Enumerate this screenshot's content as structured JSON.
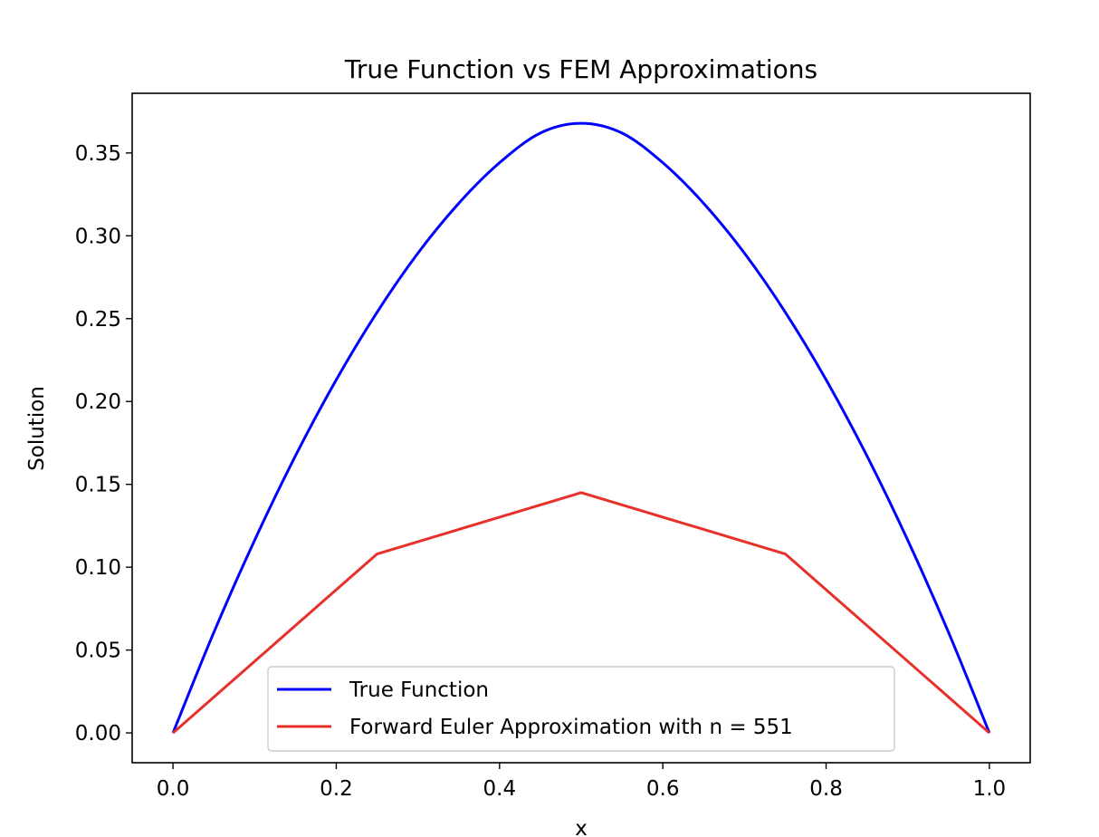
{
  "chart_data": {
    "type": "line",
    "title": "True Function vs FEM Approximations",
    "xlabel": "x",
    "ylabel": "Solution",
    "xlim": [
      -0.05,
      1.05
    ],
    "ylim": [
      -0.018,
      0.386
    ],
    "xticks": [
      "0.0",
      "0.2",
      "0.4",
      "0.6",
      "0.8",
      "1.0"
    ],
    "xtick_values": [
      0.0,
      0.2,
      0.4,
      0.6,
      0.8,
      1.0
    ],
    "yticks": [
      "0.00",
      "0.05",
      "0.10",
      "0.15",
      "0.20",
      "0.25",
      "0.30",
      "0.35"
    ],
    "ytick_values": [
      0.0,
      0.05,
      0.1,
      0.15,
      0.2,
      0.25,
      0.3,
      0.35
    ],
    "grid": false,
    "legend_position": "lower center",
    "series": [
      {
        "name": "True Function",
        "color": "#0000ff",
        "x": [
          0.0,
          0.05,
          0.1,
          0.15,
          0.2,
          0.25,
          0.3,
          0.35,
          0.4,
          0.45,
          0.5,
          0.55,
          0.6,
          0.65,
          0.7,
          0.75,
          0.8,
          0.85,
          0.9,
          0.95,
          1.0
        ],
        "y": [
          0.0,
          0.0606,
          0.1163,
          0.1672,
          0.2131,
          0.2539,
          0.2895,
          0.3196,
          0.3441,
          0.362,
          0.3679,
          0.362,
          0.3441,
          0.3196,
          0.2895,
          0.2539,
          0.2131,
          0.1672,
          0.1163,
          0.0606,
          0.0
        ]
      },
      {
        "name": "Forward Euler Approximation with n = 551",
        "color": "#e8302a",
        "x": [
          0.0,
          0.25,
          0.5,
          0.75,
          1.0
        ],
        "y": [
          0.0,
          0.108,
          0.145,
          0.108,
          0.0
        ]
      }
    ]
  }
}
